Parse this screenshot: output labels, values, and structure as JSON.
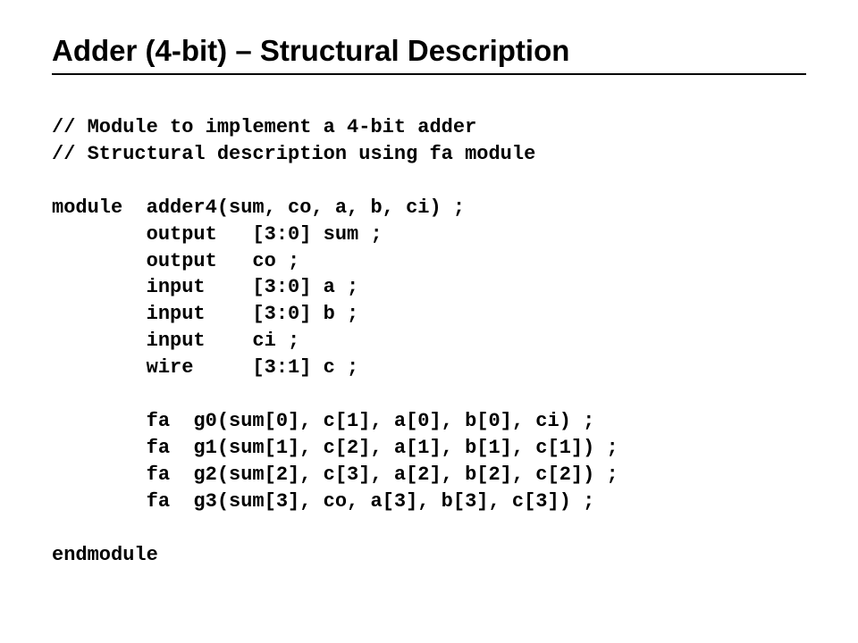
{
  "title": "Adder (4-bit) – Structural Description",
  "code": {
    "c1": "// Module to implement a 4-bit adder",
    "c2": "// Structural description using fa module",
    "blank1": "",
    "m1": "module  adder4(sum, co, a, b, ci) ;",
    "d1": "        output   [3:0] sum ;",
    "d2": "        output   co ;",
    "d3": "        input    [3:0] a ;",
    "d4": "        input    [3:0] b ;",
    "d5": "        input    ci ;",
    "d6": "        wire     [3:1] c ;",
    "blank2": "",
    "i1": "        fa  g0(sum[0], c[1], a[0], b[0], ci) ;",
    "i2": "        fa  g1(sum[1], c[2], a[1], b[1], c[1]) ;",
    "i3": "        fa  g2(sum[2], c[3], a[2], b[2], c[2]) ;",
    "i4": "        fa  g3(sum[3], co, a[3], b[3], c[3]) ;",
    "blank3": "",
    "m2": "endmodule"
  }
}
